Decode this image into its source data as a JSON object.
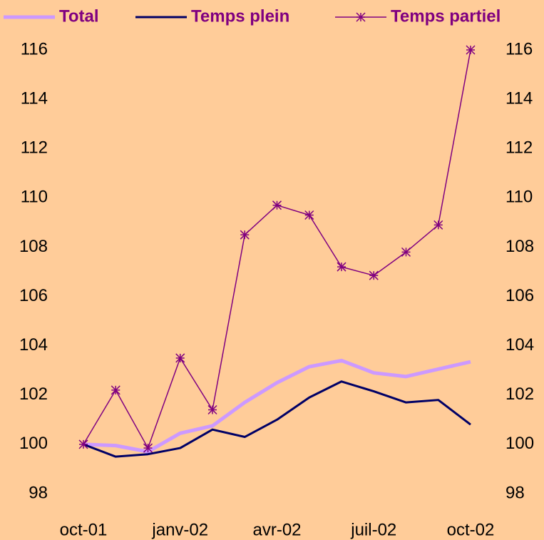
{
  "chart_data": {
    "type": "line",
    "categories": [
      "oct-01",
      null,
      null,
      "janv-02",
      null,
      null,
      "avr-02",
      null,
      null,
      "juil-02",
      null,
      null,
      "oct-02"
    ],
    "series": [
      {
        "name": "Total",
        "color": "#cc99ff",
        "values": [
          100,
          99.95,
          99.7,
          100.45,
          100.75,
          101.7,
          102.5,
          103.15,
          103.4,
          102.9,
          102.75,
          103.05,
          103.35
        ]
      },
      {
        "name": "Temps plein",
        "color": "#000066",
        "values": [
          100,
          99.5,
          99.6,
          99.85,
          100.6,
          100.3,
          101.0,
          101.9,
          102.55,
          102.15,
          101.7,
          101.8,
          100.8
        ]
      },
      {
        "name": "Temps partiel",
        "color": "#800080",
        "marker": "asterisk",
        "values": [
          100,
          102.2,
          99.85,
          103.5,
          101.4,
          108.5,
          109.7,
          109.3,
          107.2,
          106.85,
          107.8,
          108.9,
          116
        ]
      }
    ],
    "ylim": [
      98,
      116
    ],
    "yticks": [
      98,
      100,
      102,
      104,
      106,
      108,
      110,
      112,
      114,
      116
    ],
    "y2lim": [
      98,
      116
    ],
    "y2ticks": [
      98,
      100,
      102,
      104,
      106,
      108,
      110,
      112,
      114,
      116
    ],
    "legend": "top",
    "grid": false
  }
}
